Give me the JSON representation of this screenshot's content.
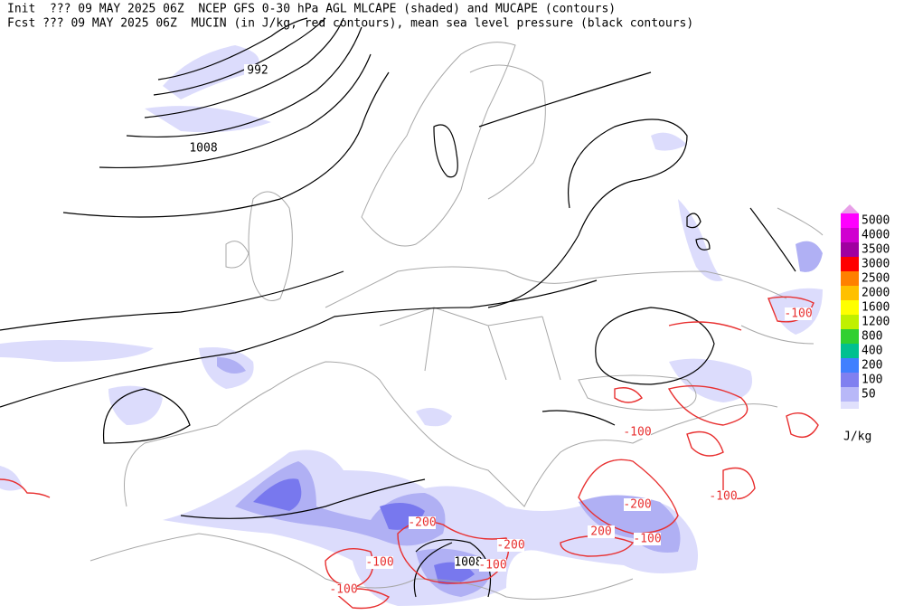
{
  "header": {
    "line1": "Init  ??? 09 MAY 2025 06Z  NCEP GFS 0-30 hPa AGL MLCAPE (shaded) and MUCAPE (contours)",
    "line2": "Fcst ??? 09 MAY 2025 06Z  MUCIN (in J/kg, red contours), mean sea level pressure (black contours)"
  },
  "legend": {
    "items": [
      {
        "label": "5000",
        "color": "#ff00ff"
      },
      {
        "label": "4000",
        "color": "#d000d0"
      },
      {
        "label": "3500",
        "color": "#a000a0"
      },
      {
        "label": "3000",
        "color": "#ff0000"
      },
      {
        "label": "2500",
        "color": "#ff8000"
      },
      {
        "label": "2000",
        "color": "#ffc000"
      },
      {
        "label": "1600",
        "color": "#ffff00"
      },
      {
        "label": "1200",
        "color": "#c0f000"
      },
      {
        "label": "800",
        "color": "#30d030"
      },
      {
        "label": "400",
        "color": "#00c090"
      },
      {
        "label": "200",
        "color": "#4080ff"
      },
      {
        "label": "100",
        "color": "#8080f0"
      },
      {
        "label": "50",
        "color": "#b8b8f8"
      }
    ],
    "top_color": "#e8a0e8",
    "bottom_color": "#e0e0fc",
    "units": "J/kg"
  },
  "contour_labels": [
    "992",
    "1008",
    "1008",
    "-100",
    "-100",
    "-200",
    "-200",
    "-200",
    "-100",
    "-100",
    "-100",
    "-100",
    "-100",
    "200"
  ]
}
